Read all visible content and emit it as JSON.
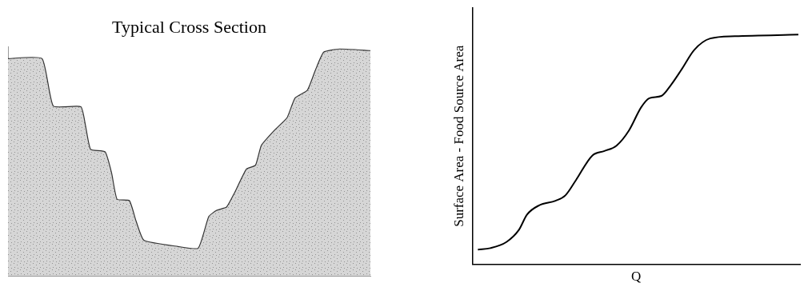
{
  "chart_data": [
    {
      "type": "area",
      "title": "Typical Cross Section",
      "x": [
        0,
        9.4,
        12.5,
        20.1,
        21.4,
        22.8,
        26.8,
        28.6,
        30.1,
        33.5,
        35.3,
        37.5,
        46.9,
        52.5,
        55.4,
        57.6,
        60.3,
        62.5,
        65.8,
        68.3,
        69.9,
        73.7,
        77.0,
        79.2,
        82.6,
        84.8,
        87.1,
        91.5,
        100
      ],
      "values": [
        94.8,
        94.8,
        74.1,
        73.8,
        65.5,
        55.2,
        54.1,
        44.8,
        33.4,
        32.8,
        24.1,
        15.5,
        12.8,
        12.1,
        25.9,
        28.6,
        30.0,
        36.2,
        46.6,
        48.3,
        56.9,
        63.8,
        69.0,
        77.6,
        81.0,
        89.7,
        97.6,
        99.0,
        98.3
      ],
      "xlim": [
        0,
        100
      ],
      "ylim": [
        0,
        100
      ],
      "tick_labels": false,
      "grid": false,
      "color": "#d6d6d6"
    },
    {
      "type": "line",
      "xlabel": "Q",
      "ylabel": "Surface Area - Food Source Area",
      "x": [
        1.7,
        5.5,
        10.4,
        14.2,
        16.7,
        20.4,
        25.4,
        28.4,
        31.6,
        36.6,
        40.3,
        44.0,
        47.8,
        51.5,
        54.0,
        57.7,
        60.7,
        63.9,
        67.7,
        72.6,
        80.1,
        99.5
      ],
      "values": [
        5.7,
        6.3,
        8.7,
        13.4,
        19.4,
        23.0,
        24.8,
        26.9,
        32.8,
        42.4,
        44.2,
        46.3,
        52.2,
        61.2,
        64.8,
        65.7,
        70.1,
        76.1,
        83.6,
        88.1,
        89.0,
        89.6
      ],
      "xlim": [
        0,
        100
      ],
      "ylim": [
        0,
        100
      ],
      "tick_labels": false,
      "grid": false,
      "color": "#000000"
    }
  ]
}
